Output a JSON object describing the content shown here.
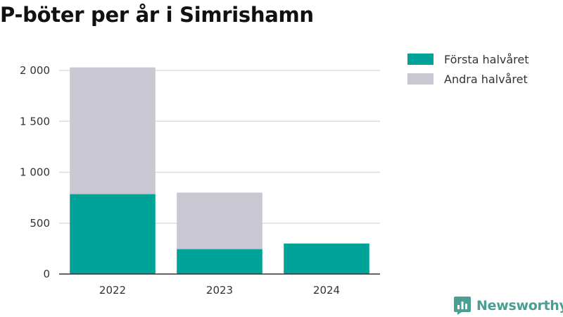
{
  "title": "P-böter per år i Simrishamn",
  "brand": {
    "name": "Newsworthy",
    "color": "#4a9e93",
    "icon": "bar-chart-logo-icon"
  },
  "legend": [
    {
      "label": "Första halvåret",
      "color": "#00a397"
    },
    {
      "label": "Andra halvåret",
      "color": "#c8c7d2"
    }
  ],
  "chart_data": {
    "type": "bar",
    "stacked": true,
    "title": "P-böter per år i Simrishamn",
    "xlabel": "",
    "ylabel": "",
    "categories": [
      "2022",
      "2023",
      "2024"
    ],
    "series": [
      {
        "name": "Första halvåret",
        "color": "#00a397",
        "values": [
          785,
          245,
          300
        ]
      },
      {
        "name": "Andra halvåret",
        "color": "#c8c7d2",
        "values": [
          1245,
          555,
          0
        ]
      }
    ],
    "ylim": [
      0,
      2000
    ],
    "yticks": [
      0,
      500,
      1000,
      1500,
      2000
    ],
    "ytick_labels": [
      "0",
      "500",
      "1 000",
      "1 500",
      "2 000"
    ],
    "grid": true,
    "gridline_color": "#dddddd",
    "axis_color": "#333333",
    "legend_position": "top-right"
  }
}
